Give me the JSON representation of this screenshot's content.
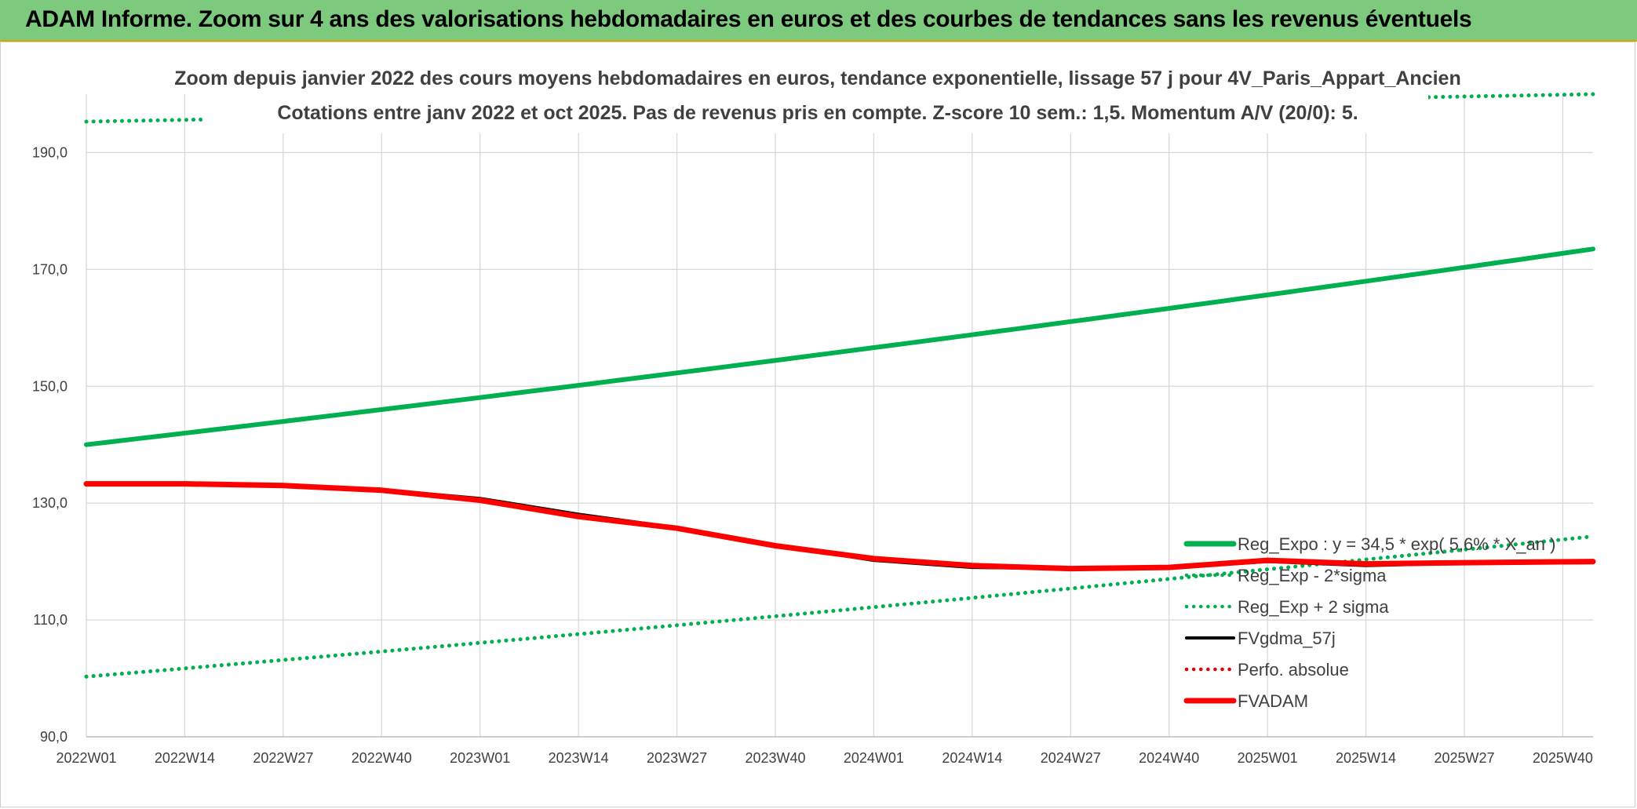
{
  "banner": {
    "title": "ADAM Informe. Zoom sur 4 ans des valorisations hebdomadaires en euros et des courbes de tendances sans les revenus éventuels"
  },
  "colors": {
    "banner_bg": "#7dc97d",
    "banner_border": "#d9a300",
    "reg_expo": "#00b050",
    "reg_band": "#00b050",
    "fvgdma": "#000000",
    "perfo": "#e00000",
    "fvadam": "#ff0000",
    "grid": "#d9d9d9"
  },
  "chart_data": {
    "type": "line",
    "title": "Zoom depuis janvier 2022 des cours moyens hebdomadaires en euros, tendance exponentielle, lissage 57 j pour 4V_Paris_Appart_Ancien",
    "subtitle": "Cotations entre janv 2022 et oct 2025. Pas de revenus pris en compte. Z-score 10 sem.: 1,5. Momentum A/V (20/0): 5.",
    "xlabel": "",
    "ylabel": "",
    "x_tick_labels": [
      "2022W01",
      "2022W14",
      "2022W27",
      "2022W40",
      "2023W01",
      "2023W14",
      "2023W27",
      "2023W40",
      "2024W01",
      "2024W14",
      "2024W27",
      "2024W40",
      "2025W01",
      "2025W14",
      "2025W27",
      "2025W40"
    ],
    "x_range_weeks": [
      0,
      199
    ],
    "y_ticks": [
      "90,0",
      "110,0",
      "130,0",
      "150,0",
      "170,0",
      "190,0"
    ],
    "ylim": [
      90,
      200
    ],
    "grid": true,
    "legend_position": "bottom-right",
    "legend": [
      {
        "label": "Reg_Expo : y = 34,5 * exp( 5,6% * X_an )",
        "style": "solid-thick",
        "color": "#00b050"
      },
      {
        "label": "Reg_Exp - 2*sigma",
        "style": "dotted",
        "color": "#00b050"
      },
      {
        "label": "Reg_Exp + 2 sigma",
        "style": "dotted",
        "color": "#00b050"
      },
      {
        "label": "FVgdma_57j",
        "style": "solid",
        "color": "#000000"
      },
      {
        "label": "Perfo. absolue",
        "style": "dotted",
        "color": "#e00000"
      },
      {
        "label": "FVADAM",
        "style": "solid-thick",
        "color": "#ff0000"
      }
    ],
    "series": [
      {
        "name": "Reg_Expo : y = 34,5 * exp( 5,6% * X_an )",
        "x": [
          0,
          199
        ],
        "values": [
          140.0,
          173.5
        ]
      },
      {
        "name": "Reg_Exp - 2*sigma",
        "x": [
          0,
          199
        ],
        "values": [
          100.3,
          124.3
        ]
      },
      {
        "name": "Reg_Exp + 2 sigma",
        "x": [
          0,
          199
        ],
        "values": [
          195.3,
          200.0
        ]
      },
      {
        "name": "FVgdma_57j",
        "x": [
          0,
          13,
          26,
          39,
          52,
          65,
          78,
          91,
          104,
          117,
          130,
          143,
          156,
          169,
          182,
          199
        ],
        "values": [
          133.3,
          133.3,
          133.1,
          132.3,
          130.8,
          128.1,
          125.8,
          122.8,
          120.2,
          119.0,
          118.8,
          118.9,
          120.0,
          119.3,
          119.7,
          119.8
        ]
      },
      {
        "name": "FVADAM",
        "x": [
          0,
          13,
          26,
          39,
          52,
          65,
          78,
          91,
          104,
          117,
          130,
          143,
          156,
          169,
          182,
          199
        ],
        "values": [
          133.3,
          133.3,
          133.0,
          132.2,
          130.5,
          127.7,
          125.7,
          122.7,
          120.5,
          119.3,
          118.8,
          119.0,
          120.2,
          119.6,
          119.8,
          120.0
        ]
      }
    ]
  }
}
